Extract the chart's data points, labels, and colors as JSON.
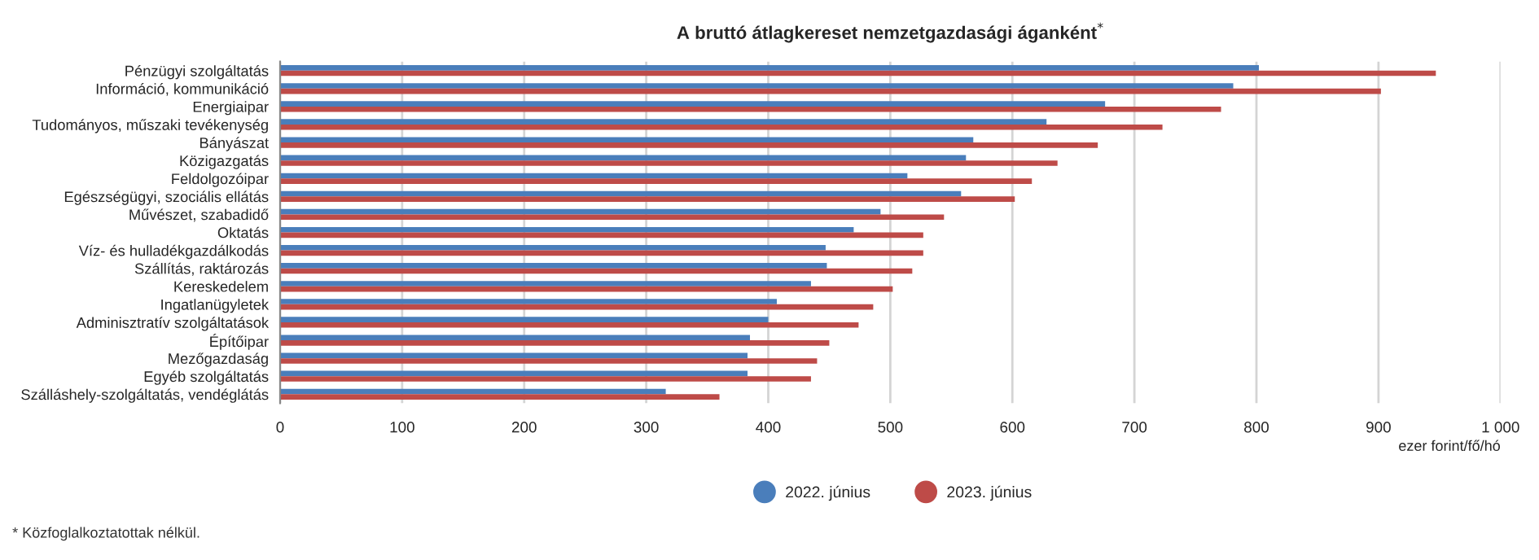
{
  "chart_data": {
    "type": "bar",
    "orientation": "horizontal",
    "title": "A bruttó átlagkereset nemzetgazdasági áganként$^{*}$",
    "xlabel": "ezer forint/fő/hó",
    "categories": [
      "Pénzügyi szolgáltatás",
      "Információ, kommunikáció",
      "Energiaipar",
      "Tudományos, műszaki tevékenység",
      "Bányászat",
      "Közigazgatás",
      "Feldolgozóipar",
      "Egészségügyi, szociális ellátás",
      "Művészet, szabadidő",
      "Oktatás",
      "Víz- és hulladékgazdálkodás",
      "Szállítás, raktározás",
      "Kereskedelem",
      "Ingatlanügyletek",
      "Adminisztratív szolgáltatások",
      "Építőipar",
      "Mezőgazdaság",
      "Egyéb szolgáltatás",
      "Szálláshely-szolgáltatás, vendéglátás"
    ],
    "series": [
      {
        "name": "2022. június",
        "color": "#4a7ebb",
        "values": [
          802,
          781,
          676,
          628,
          568,
          562,
          514,
          558,
          492,
          470,
          447,
          448,
          435,
          407,
          400,
          385,
          383,
          383,
          316
        ]
      },
      {
        "name": "2023. június",
        "color": "#be4b48",
        "values": [
          947,
          902,
          771,
          723,
          670,
          637,
          616,
          602,
          544,
          527,
          527,
          518,
          502,
          486,
          474,
          450,
          440,
          435,
          360
        ]
      }
    ],
    "xlim": [
      0,
      1000
    ],
    "xticks": [
      0,
      100,
      200,
      300,
      400,
      500,
      600,
      700,
      800,
      900,
      {
        "value": 1000,
        "label": "1 000"
      }
    ],
    "grid": "x",
    "legend": "bottom",
    "annotations": [
      "* Közfoglalkoztatottak nélkül."
    ]
  }
}
